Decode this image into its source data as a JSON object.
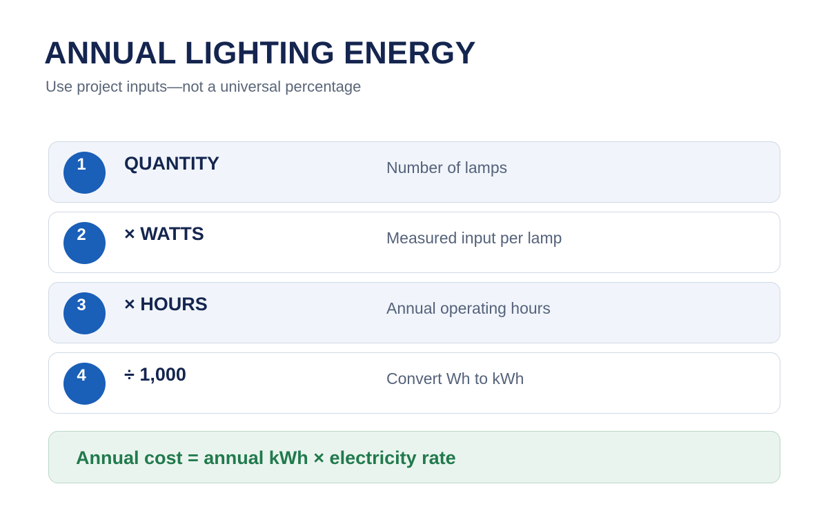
{
  "header": {
    "title": "ANNUAL LIGHTING ENERGY",
    "subtitle": "Use project inputs—not a universal percentage"
  },
  "steps": [
    {
      "number": "1",
      "operation": "QUANTITY",
      "description": "Number of lamps"
    },
    {
      "number": "2",
      "operation": "× WATTS",
      "description": "Measured input per lamp"
    },
    {
      "number": "3",
      "operation": "× HOURS",
      "description": "Annual operating hours"
    },
    {
      "number": "4",
      "operation": "÷ 1,000",
      "description": "Convert Wh to kWh"
    }
  ],
  "result": {
    "text": "Annual cost = annual kWh × electricity rate"
  },
  "colors": {
    "title": "#14254f",
    "badge": "#1a5fb8",
    "result_text": "#217a4d",
    "result_background": "#eaf4ee"
  }
}
